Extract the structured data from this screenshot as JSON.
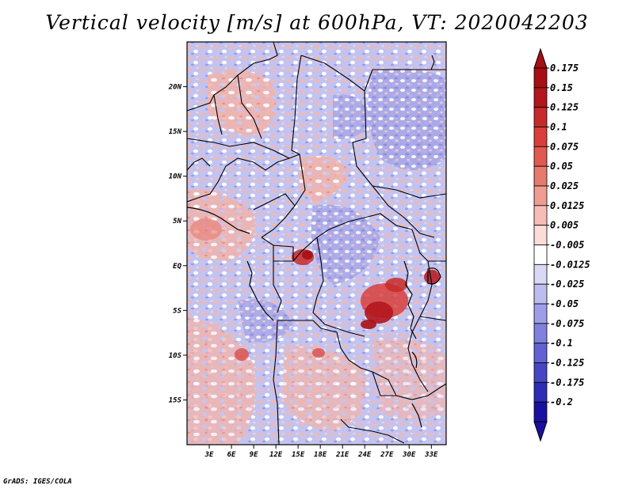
{
  "title": "Vertical velocity [m/s] at 600hPa, VT: 2020042203",
  "credit": "GrADS: IGES/COLA",
  "map": {
    "lon_range": [
      0,
      35
    ],
    "lat_range": [
      -20,
      25
    ],
    "lon_ticks": [
      {
        "value": 3,
        "label": "3E"
      },
      {
        "value": 6,
        "label": "6E"
      },
      {
        "value": 9,
        "label": "9E"
      },
      {
        "value": 12,
        "label": "12E"
      },
      {
        "value": 15,
        "label": "15E"
      },
      {
        "value": 18,
        "label": "18E"
      },
      {
        "value": 21,
        "label": "21E"
      },
      {
        "value": 24,
        "label": "24E"
      },
      {
        "value": 27,
        "label": "27E"
      },
      {
        "value": 30,
        "label": "30E"
      },
      {
        "value": 33,
        "label": "33E"
      }
    ],
    "lat_ticks": [
      {
        "value": 20,
        "label": "20N"
      },
      {
        "value": 15,
        "label": "15N"
      },
      {
        "value": 10,
        "label": "10N"
      },
      {
        "value": 5,
        "label": "5N"
      },
      {
        "value": 0,
        "label": "EQ"
      },
      {
        "value": -5,
        "label": "5S"
      },
      {
        "value": -10,
        "label": "10S"
      },
      {
        "value": -15,
        "label": "15S"
      }
    ]
  },
  "colorbar": {
    "levels": [
      {
        "label": "0.175",
        "color": "#a50f15"
      },
      {
        "label": "0.15",
        "color": "#b3161c"
      },
      {
        "label": "0.125",
        "color": "#c62a2a"
      },
      {
        "label": "0.1",
        "color": "#d83f3c"
      },
      {
        "label": "0.075",
        "color": "#e05a50"
      },
      {
        "label": "0.05",
        "color": "#e77a6e"
      },
      {
        "label": "0.025",
        "color": "#ef9c93"
      },
      {
        "label": "0.0125",
        "color": "#f6bdb6"
      },
      {
        "label": "0.005",
        "color": "#fbdcd8"
      },
      {
        "label": "-0.005",
        "color": "#ffffff"
      },
      {
        "label": "-0.0125",
        "color": "#d9d9f6"
      },
      {
        "label": "-0.025",
        "color": "#bcbcf0"
      },
      {
        "label": "-0.05",
        "color": "#9e9ee8"
      },
      {
        "label": "-0.075",
        "color": "#8080de"
      },
      {
        "label": "-0.1",
        "color": "#6262d2"
      },
      {
        "label": "-0.125",
        "color": "#4646c4"
      },
      {
        "label": "-0.175",
        "color": "#2c2cb4"
      },
      {
        "label": "-0.2",
        "color": "#1a10a0"
      }
    ],
    "top_arrow_color": "#a50f15",
    "bottom_arrow_color": "#1a10a0"
  },
  "colors": {
    "background_field": "#b8b8ee",
    "border_lines": "#000000"
  }
}
